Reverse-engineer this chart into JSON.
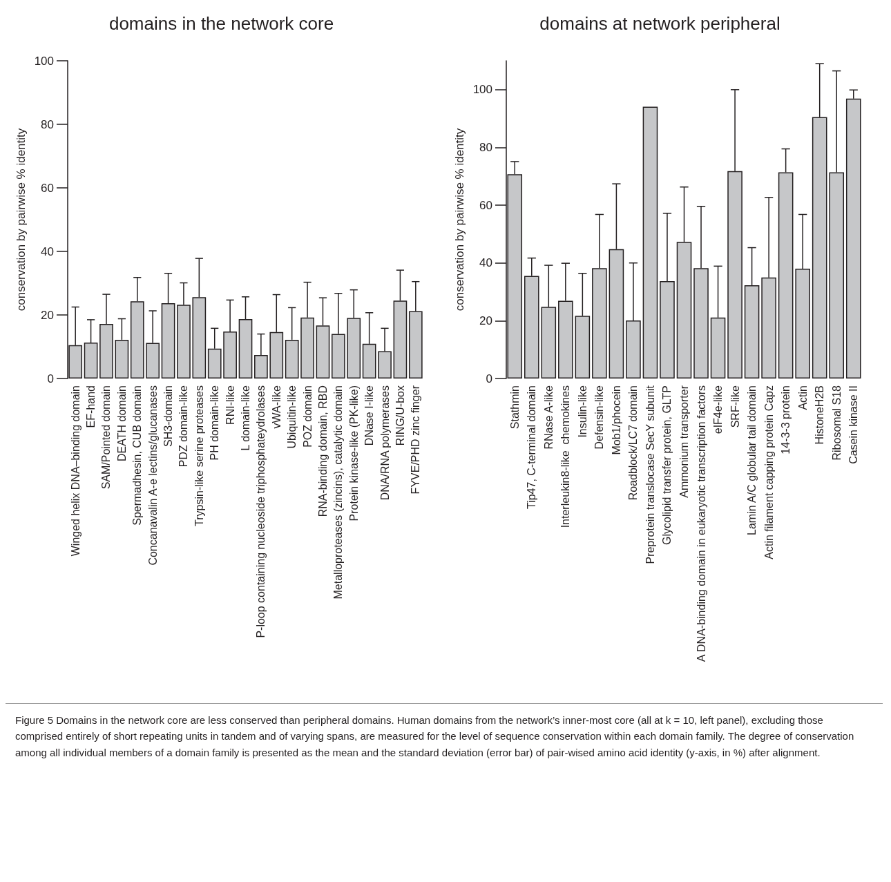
{
  "chart_data": [
    {
      "type": "bar",
      "title": "domains in the network core",
      "ylabel": "conservation by pairwise % identity",
      "categories": [
        "Winged helix DNA–binding domain",
        "EF-hand",
        "SAM/Pointed domain",
        "DEATH domain",
        "Spermadhesin, CUB domain",
        "Concanavalin A-e lectins/glucanases",
        "SH3-domain",
        "PDZ domain-like",
        "Trypsin-like serine proteases",
        "PH domain-like",
        "RNI-like",
        "L domain-like",
        "P-loop containing nucleoside triphosphateydrolases",
        "vWA-like",
        "Ubiquitin-like",
        "POZ domain",
        "RNA-binding domain, RBD",
        "Metalloproteases (zincins), catalytic domain",
        "Protein kinase-like (PK-like)",
        "DNase I-like",
        "DNA/RNA polymerases",
        "RING/U-box",
        "FYVE/PHD zinc finger"
      ],
      "values": [
        10.5,
        11.3,
        17.2,
        12.2,
        24.3,
        11.2,
        23.7,
        23.2,
        25.6,
        9.4,
        14.8,
        18.7,
        7.4,
        14.6,
        12.2,
        19.2,
        16.7,
        14.0,
        19.1,
        10.9,
        8.6,
        24.5,
        21.2
      ],
      "errors": [
        [
          10.5,
          22.5
        ],
        [
          11.3,
          18.5
        ],
        [
          17.2,
          26.5
        ],
        [
          12.2,
          18.8
        ],
        [
          24.3,
          31.8
        ],
        [
          11.2,
          21.3
        ],
        [
          23.7,
          33.1
        ],
        [
          23.2,
          30.1
        ],
        [
          25.6,
          37.8
        ],
        [
          9.4,
          15.8
        ],
        [
          14.8,
          24.7
        ],
        [
          18.7,
          25.7
        ],
        [
          7.4,
          14.0
        ],
        [
          14.6,
          26.4
        ],
        [
          12.2,
          22.3
        ],
        [
          19.2,
          30.3
        ],
        [
          16.7,
          25.4
        ],
        [
          14.0,
          26.8
        ],
        [
          19.1,
          27.9
        ],
        [
          10.9,
          20.7
        ],
        [
          8.6,
          15.8
        ],
        [
          24.5,
          34.1
        ],
        [
          21.2,
          30.5
        ]
      ],
      "color": "#c6c7c9",
      "ylim": [
        0,
        100
      ],
      "yticks": [
        0,
        20,
        40,
        60,
        80,
        100
      ],
      "grid": false,
      "annotations": [
        "Figure 5 Domains in the network core are less conserved than peripheral domains. Human domains from the network’s inner-most core (all at k = 10, left panel), excluding those comprised entirely of short repeating units in tandem and of varying spans, are measured for the level of sequence conservation within each domain family. The degree of conservation among all individual members of a domain family is presented as the mean and the standard deviation (error bar) of pair-wised amino acid identity (y-axis, in %) after alignment."
      ]
    },
    {
      "type": "bar",
      "title": "domains at network peripheral",
      "ylabel": "conservation by pairwise % identity",
      "categories": [
        "Stathmin",
        "Tip47, C-terminal domain",
        "RNase A-like",
        "Interleukin8-like  chemokines",
        "Insulin-like",
        "Defensin-like",
        "Mob1/phocein",
        "Roadblock/LC7 domain",
        "Preprotein translocase SecY subunit",
        "Glycolipid transfer protein, GLTP",
        "Ammonium transporter",
        "A DNA-binding domain in eukaryotic transcription factors",
        "eIF4e-like",
        "SRF-like",
        "Lamin A/C globular tail domain",
        "Actin filament capping protein Capz",
        "14-3-3 protein",
        "Actin",
        "HistoneH2B",
        "Ribosomal S18",
        "Casein kinase II"
      ],
      "values": [
        70.7,
        35.5,
        24.8,
        26.9,
        21.7,
        38.2,
        44.8,
        20.1,
        94.1,
        33.7,
        47.3,
        38.2,
        21.1,
        71.8,
        32.3,
        35.0,
        71.4,
        38.0,
        90.5,
        71.4,
        96.9
      ],
      "errors": [
        [
          70.7,
          75.1
        ],
        [
          35.5,
          41.7
        ],
        [
          24.8,
          39.2
        ],
        [
          26.9,
          39.9
        ],
        [
          21.7,
          36.4
        ],
        [
          38.2,
          56.8
        ],
        [
          44.8,
          67.4
        ],
        [
          20.1,
          40.0
        ],
        null,
        [
          33.7,
          57.2
        ],
        [
          47.3,
          66.3
        ],
        [
          38.2,
          59.6
        ],
        [
          21.1,
          38.9
        ],
        [
          71.8,
          100
        ],
        [
          32.3,
          45.3
        ],
        [
          35.0,
          62.7
        ],
        [
          71.4,
          79.5
        ],
        [
          38.0,
          56.8
        ],
        [
          90.5,
          109
        ],
        [
          71.4,
          106.5
        ],
        [
          96.9,
          99.9
        ]
      ],
      "color": "#c6c7c9",
      "ylim": [
        0,
        110
      ],
      "yticks": [
        0,
        20,
        40,
        60,
        80,
        100
      ],
      "grid": false
    }
  ]
}
